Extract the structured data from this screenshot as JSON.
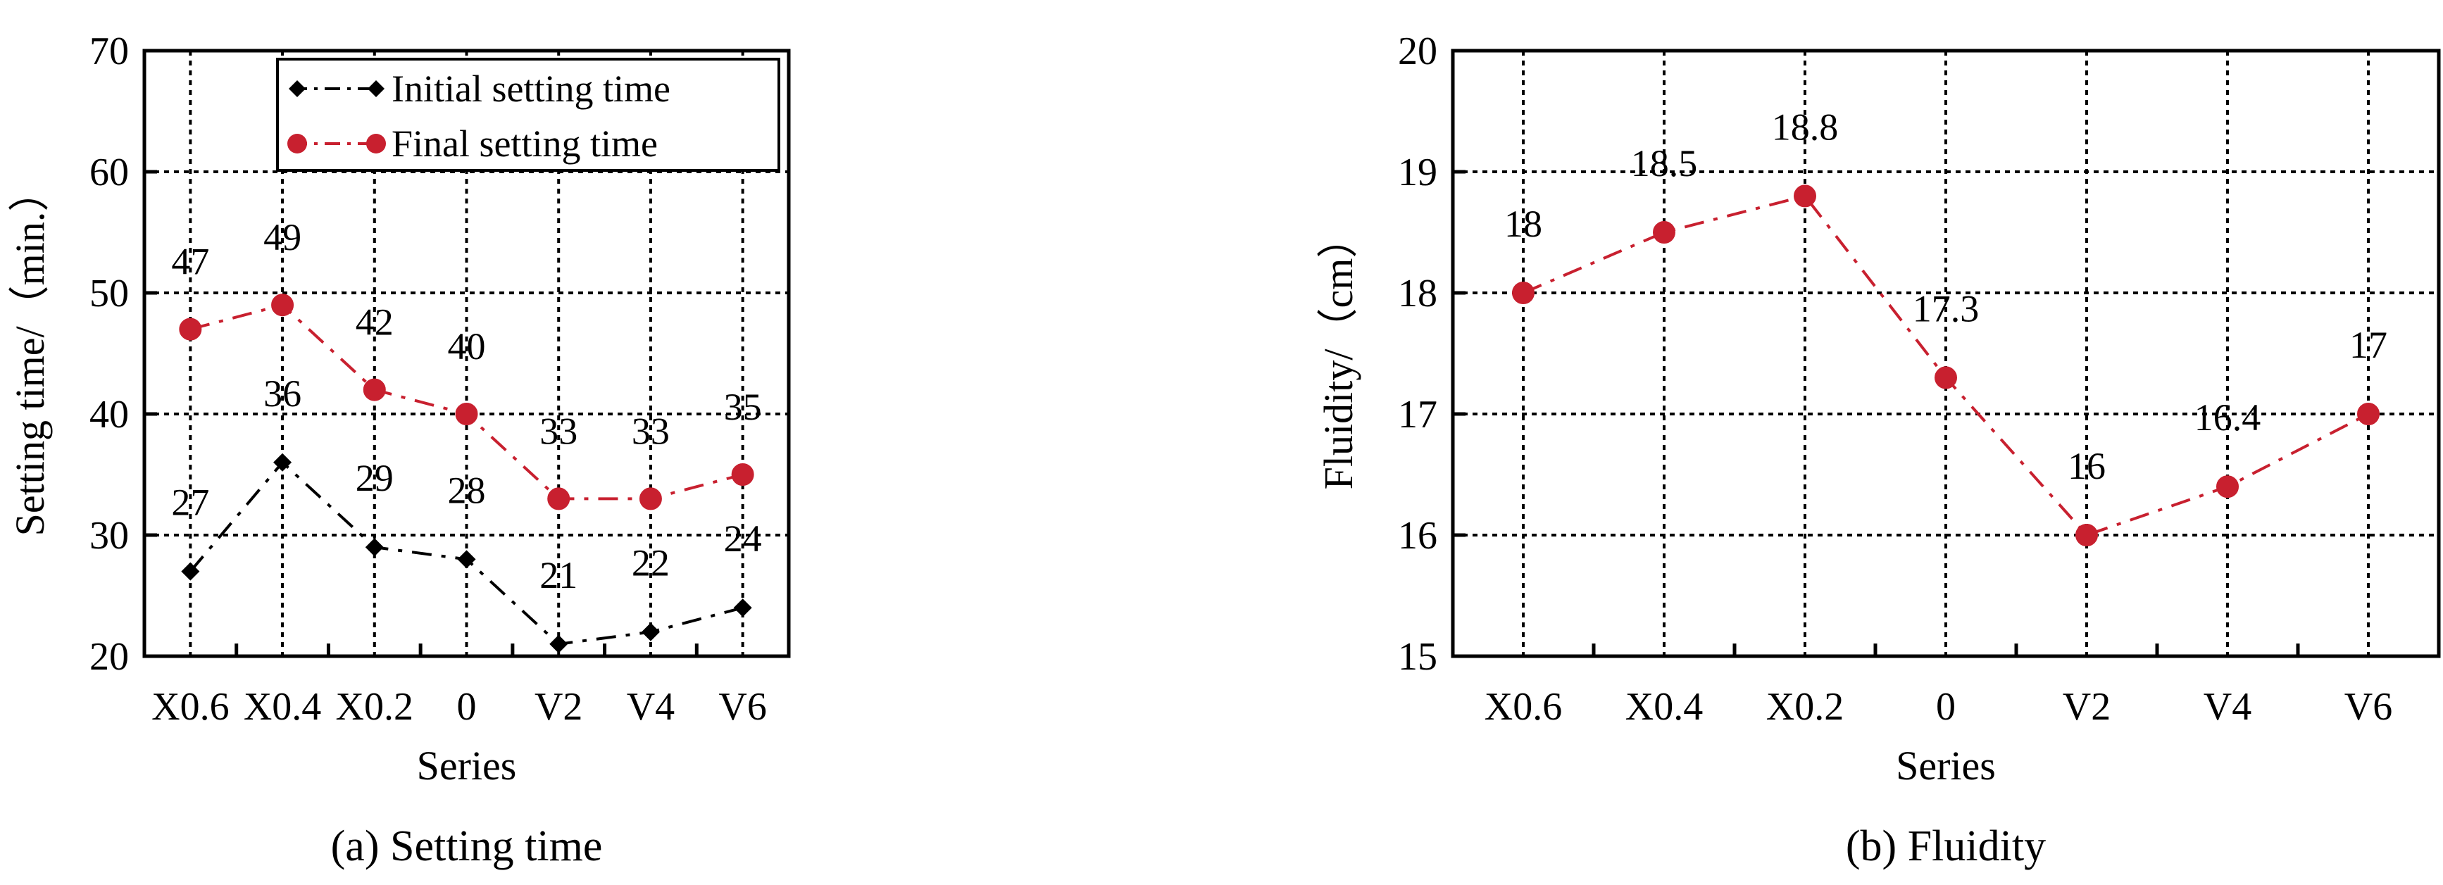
{
  "chart_data": [
    {
      "type": "line",
      "caption": "(a) Setting time",
      "xlabel": "Series",
      "ylabel": "Setting time/（min.）",
      "categories": [
        "X0.6",
        "X0.4",
        "X0.2",
        "0",
        "V2",
        "V4",
        "V6"
      ],
      "ylim": [
        20,
        70
      ],
      "yticks": [
        20,
        30,
        40,
        50,
        60,
        70
      ],
      "grid": true,
      "legend_position": "top-right",
      "series": [
        {
          "name": "Initial setting time",
          "values": [
            27,
            36,
            29,
            28,
            21,
            22,
            24
          ],
          "color": "#000000",
          "marker": "diamond",
          "line_style": "dash-dot"
        },
        {
          "name": "Final setting time",
          "values": [
            47,
            49,
            42,
            40,
            33,
            33,
            35
          ],
          "color": "#c8202f",
          "marker": "circle",
          "line_style": "dash-dot"
        }
      ]
    },
    {
      "type": "line",
      "caption": "(b) Fluidity",
      "xlabel": "Series",
      "ylabel": "Fluidity/（cm）",
      "categories": [
        "X0.6",
        "X0.4",
        "X0.2",
        "0",
        "V2",
        "V4",
        "V6"
      ],
      "ylim": [
        15,
        20
      ],
      "yticks": [
        15,
        16,
        17,
        18,
        19,
        20
      ],
      "grid": true,
      "series": [
        {
          "values": [
            18,
            18.5,
            18.8,
            17.3,
            16,
            16.4,
            17
          ],
          "color": "#c8202f",
          "marker": "circle",
          "line_style": "dash-dot"
        }
      ]
    }
  ]
}
